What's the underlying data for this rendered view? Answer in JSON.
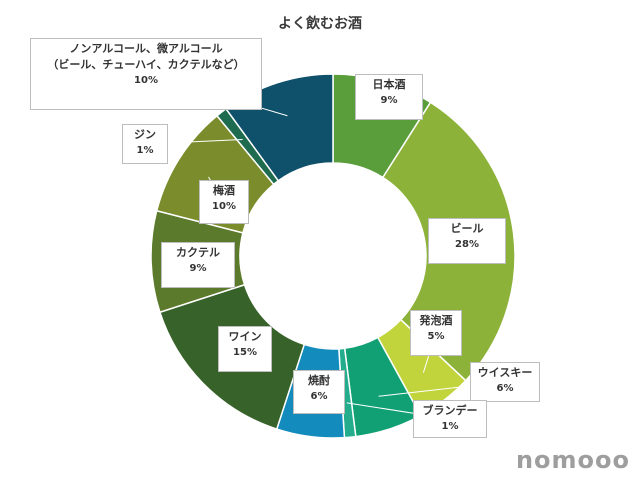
{
  "chart_data": {
    "type": "pie",
    "title": "よく飲むお酒",
    "slices": [
      {
        "label": "日本酒",
        "value": 9,
        "value_label": "9%",
        "color": "#5a9e3c"
      },
      {
        "label": "ビール",
        "value": 28,
        "value_label": "28%",
        "color": "#8db23a"
      },
      {
        "label": "発泡酒",
        "value": 5,
        "value_label": "5%",
        "color": "#c1d43c"
      },
      {
        "label": "ウイスキー",
        "value": 6,
        "value_label": "6%",
        "color": "#11a073"
      },
      {
        "label": "ブランデー",
        "value": 1,
        "value_label": "1%",
        "color": "#23ad8d"
      },
      {
        "label": "焼酎",
        "value": 6,
        "value_label": "6%",
        "color": "#138bbd"
      },
      {
        "label": "ワイン",
        "value": 15,
        "value_label": "15%",
        "color": "#37622a"
      },
      {
        "label": "カクテル",
        "value": 9,
        "value_label": "9%",
        "color": "#5c7a2c"
      },
      {
        "label": "梅酒",
        "value": 10,
        "value_label": "10%",
        "color": "#7a8c2c"
      },
      {
        "label": "ジン",
        "value": 1,
        "value_label": "1%",
        "color": "#1e6b4f"
      },
      {
        "label": "ノンアルコール、微アルコール\n（ビール、チューハイ、カクテルなど）",
        "value": 10,
        "value_label": "10%",
        "color": "#0f516a"
      }
    ]
  },
  "brand": {
    "logo": "nomooo"
  }
}
